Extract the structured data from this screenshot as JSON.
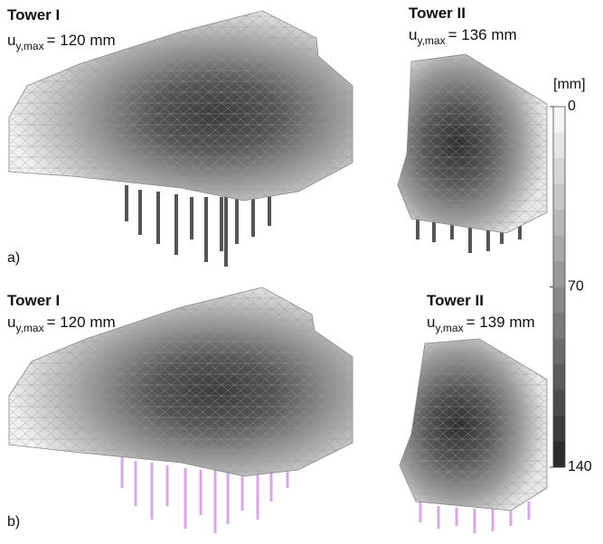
{
  "panels": [
    {
      "label": "a)",
      "towers": [
        {
          "title": "Tower I",
          "symbol": "u",
          "subscript": "y,max",
          "value_text": "= 120 mm"
        },
        {
          "title": "Tower II",
          "symbol": "u",
          "subscript": "y,max",
          "value_text": "= 136 mm"
        }
      ]
    },
    {
      "label": "b)",
      "towers": [
        {
          "title": "Tower I",
          "symbol": "u",
          "subscript": "y,max",
          "value_text": "= 120 mm"
        },
        {
          "title": "Tower II",
          "symbol": "u",
          "subscript": "y,max",
          "value_text": "= 139 mm"
        }
      ]
    }
  ],
  "colorbar": {
    "unit": "[mm]",
    "lim": [
      0,
      140
    ],
    "ticks": [
      0,
      70,
      140
    ]
  }
}
